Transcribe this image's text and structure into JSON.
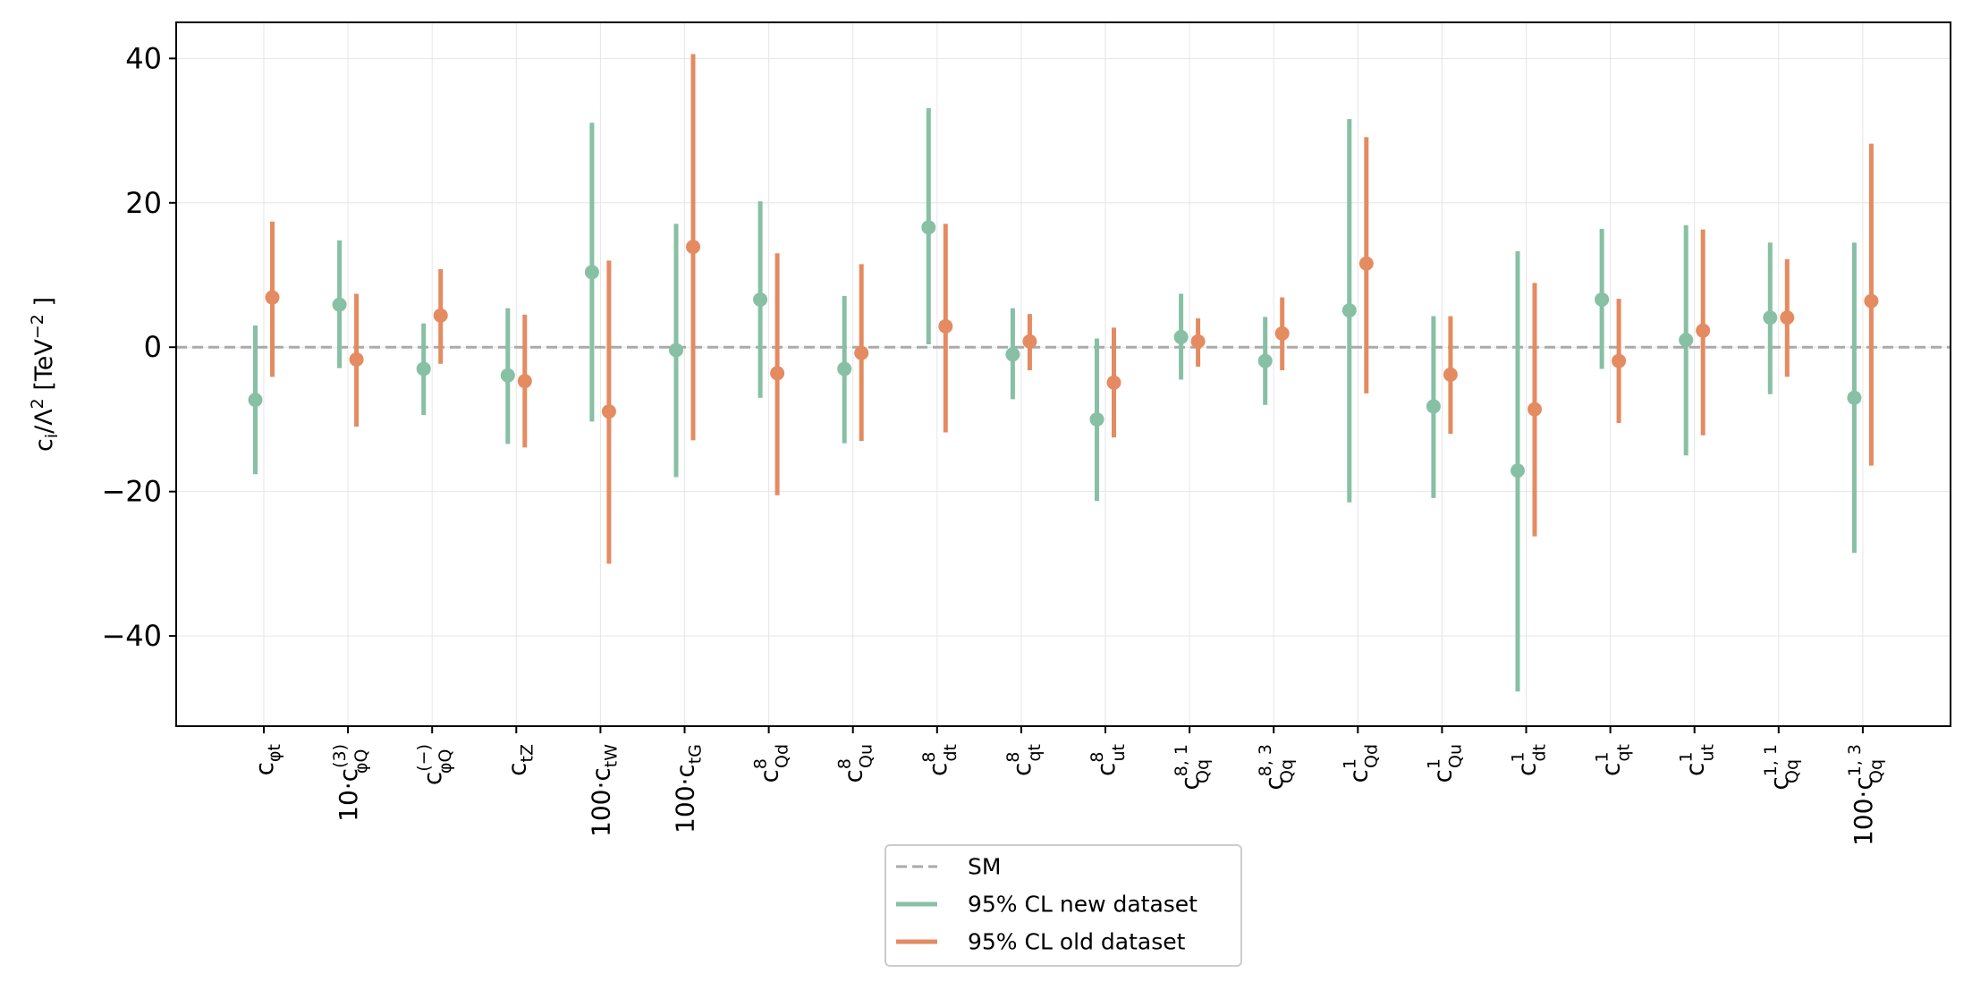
{
  "chart_data": {
    "type": "errorbar",
    "xlabel": "",
    "ylabel": {
      "base": "c",
      "sub": "i",
      "mid": "/Λ",
      "sup": "2",
      "unit": "  [TeV",
      "unit_sup": "−2",
      "close": " ]"
    },
    "ylim": [
      -52.5,
      45
    ],
    "yticks": [
      40,
      20,
      0,
      -20,
      -40
    ],
    "ytick_labels": [
      "40",
      "20",
      "0",
      "−20",
      "−40"
    ],
    "grid": true,
    "reference_line": {
      "name": "SM",
      "y": 0,
      "style": "dashed",
      "color": "#aaaaaa"
    },
    "legend": {
      "position": "below-center",
      "entries": [
        "SM",
        "95% CL new dataset",
        "95% CL old dataset"
      ]
    },
    "categories": [
      {
        "prefix": "",
        "base": "c",
        "sub": "φt",
        "sup": ""
      },
      {
        "prefix": "10·",
        "base": "c",
        "sub": "φQ",
        "sup": "(3)"
      },
      {
        "prefix": "",
        "base": "c",
        "sub": "φQ",
        "sup": "(−)"
      },
      {
        "prefix": "",
        "base": "c",
        "sub": "tZ",
        "sup": ""
      },
      {
        "prefix": "100·",
        "base": "c",
        "sub": "tW",
        "sup": ""
      },
      {
        "prefix": "100·",
        "base": "c",
        "sub": "tG",
        "sup": ""
      },
      {
        "prefix": "",
        "base": "c",
        "sub": "Qd",
        "sup": "8"
      },
      {
        "prefix": "",
        "base": "c",
        "sub": "Qu",
        "sup": "8"
      },
      {
        "prefix": "",
        "base": "c",
        "sub": "dt",
        "sup": "8"
      },
      {
        "prefix": "",
        "base": "c",
        "sub": "qt",
        "sup": "8"
      },
      {
        "prefix": "",
        "base": "c",
        "sub": "ut",
        "sup": "8"
      },
      {
        "prefix": "",
        "base": "c",
        "sub": "Qq",
        "sup": "8, 1"
      },
      {
        "prefix": "",
        "base": "c",
        "sub": "Qq",
        "sup": "8, 3"
      },
      {
        "prefix": "",
        "base": "c",
        "sub": "Qd",
        "sup": "1"
      },
      {
        "prefix": "",
        "base": "c",
        "sub": "Qu",
        "sup": "1"
      },
      {
        "prefix": "",
        "base": "c",
        "sub": "dt",
        "sup": "1"
      },
      {
        "prefix": "",
        "base": "c",
        "sub": "qt",
        "sup": "1"
      },
      {
        "prefix": "",
        "base": "c",
        "sub": "ut",
        "sup": "1"
      },
      {
        "prefix": "",
        "base": "c",
        "sub": "Qq",
        "sup": "1, 1"
      },
      {
        "prefix": "100·",
        "base": "c",
        "sub": "Qq",
        "sup": "1, 3"
      }
    ],
    "series": [
      {
        "name": "95% CL new dataset",
        "color": "#87c0a4",
        "central": [
          -7.3,
          5.9,
          -3.0,
          -3.9,
          10.4,
          -0.4,
          6.6,
          -3.0,
          16.6,
          -1.0,
          -10.0,
          1.4,
          -1.9,
          5.1,
          -8.2,
          -17.1,
          6.6,
          1.0,
          4.1,
          -7.0
        ],
        "low": [
          -17.6,
          -2.9,
          -9.4,
          -13.4,
          -10.3,
          -18.0,
          -7.0,
          -13.3,
          0.4,
          -7.2,
          -21.3,
          -4.5,
          -8.0,
          -21.5,
          -20.9,
          -47.7,
          -3.0,
          -15.0,
          -6.5,
          -28.5
        ],
        "high": [
          3.0,
          14.8,
          3.3,
          5.4,
          31.1,
          17.1,
          20.2,
          7.1,
          33.1,
          5.4,
          1.2,
          7.4,
          4.2,
          31.6,
          4.3,
          13.3,
          16.4,
          16.9,
          14.5,
          14.5
        ]
      },
      {
        "name": "95% CL old dataset",
        "color": "#e48b61",
        "central": [
          6.9,
          -1.7,
          4.4,
          -4.7,
          -8.9,
          13.9,
          -3.6,
          -0.8,
          2.9,
          0.8,
          -4.9,
          0.8,
          1.9,
          11.6,
          -3.8,
          -8.6,
          -1.9,
          2.3,
          4.1,
          6.4
        ],
        "low": [
          -4.1,
          -11.0,
          -2.3,
          -13.9,
          -30.0,
          -12.9,
          -20.5,
          -13.0,
          -11.8,
          -3.2,
          -12.5,
          -2.7,
          -3.2,
          -6.4,
          -12.0,
          -26.2,
          -10.5,
          -12.2,
          -4.1,
          -16.4
        ],
        "high": [
          17.4,
          7.4,
          10.8,
          4.5,
          12.0,
          40.6,
          13.0,
          11.5,
          17.1,
          4.6,
          2.7,
          4.0,
          6.9,
          29.1,
          4.3,
          8.9,
          6.7,
          16.3,
          12.2,
          28.2
        ]
      }
    ]
  }
}
